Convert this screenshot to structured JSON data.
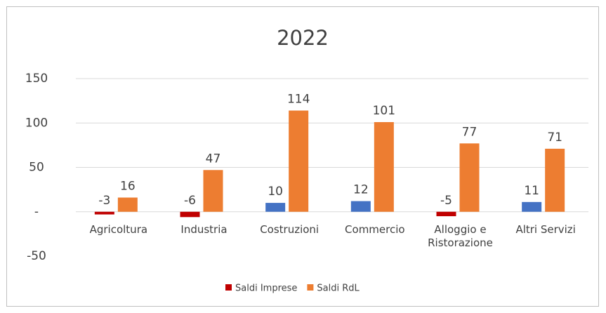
{
  "chart_data": {
    "type": "bar",
    "title": "2022",
    "categories": [
      "Agricoltura",
      "Industria",
      "Costruzioni",
      "Commercio",
      "Alloggio e Ristorazione",
      "Altri Servizi"
    ],
    "series": [
      {
        "name": "Saldi Imprese",
        "color": "#c00000",
        "point_colors": [
          "#c00000",
          "#c00000",
          "#4472c4",
          "#4472c4",
          "#c00000",
          "#4472c4"
        ],
        "values": [
          -3,
          -6,
          10,
          12,
          -5,
          11
        ]
      },
      {
        "name": "Saldi RdL",
        "color": "#ed7d31",
        "values": [
          16,
          47,
          114,
          101,
          77,
          71
        ]
      }
    ],
    "ylim": [
      -50,
      150
    ],
    "yticks": [
      -50,
      {
        "value": 0,
        "label": "-"
      },
      50,
      100,
      150
    ],
    "grid": true,
    "legend": "bottom"
  }
}
